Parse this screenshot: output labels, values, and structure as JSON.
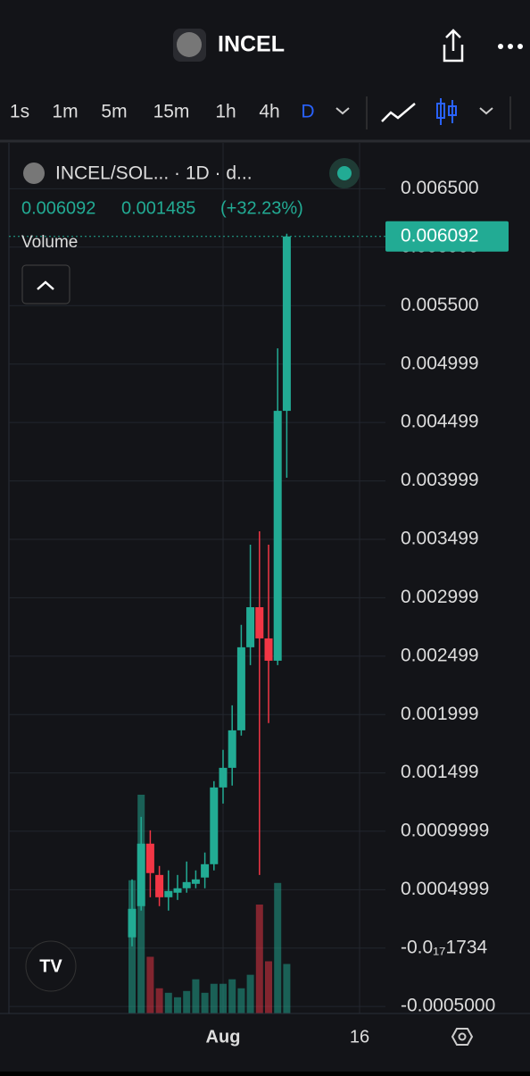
{
  "header": {
    "title": "INCEL"
  },
  "toolbar": {
    "intervals": [
      "1s",
      "1m",
      "5m",
      "15m",
      "1h",
      "4h",
      "D"
    ]
  },
  "legend": {
    "symbol": "INCEL/SOL... · 1D · d...",
    "price": "0.006092",
    "change": "0.001485",
    "change_pct": "(+32.23%)",
    "volume": "Volume"
  },
  "chart_data": {
    "type": "candlestick",
    "up_color": "#22ab94",
    "down_color": "#f23645",
    "grid": true,
    "ylim": [
      -0.00056,
      0.00674
    ],
    "yticks": [
      {
        "value": -0.0005,
        "label": "-0.0005000"
      },
      {
        "value": -1.734e-20,
        "label": "-0.0₁₇1734"
      },
      0.0004999,
      0.0009999,
      0.001499,
      0.001999,
      0.002499,
      0.002999,
      0.003499,
      0.003999,
      0.004499,
      0.004999,
      {
        "value": 0.0055,
        "label": "0.005500"
      },
      {
        "value": 0.006,
        "label": "0.006000"
      },
      {
        "value": 0.0065,
        "label": "0.006500"
      }
    ],
    "last": {
      "value": 0.006092,
      "label": "0.006092"
    },
    "x_labels": [
      {
        "index": 10,
        "label": "Aug"
      },
      {
        "index": 25,
        "label": "16"
      }
    ],
    "open": [
      9.2e-05,
      0.000359,
      0.000894,
      0.000626,
      0.000435,
      0.000474,
      0.000512,
      0.00055,
      0.000604,
      0.000718,
      0.001375,
      0.001543,
      0.001864,
      0.002575,
      0.002918,
      0.002651,
      0.00246,
      0.004599
    ],
    "high": [
      0.000588,
      0.001123,
      0.001008,
      0.000703,
      0.000665,
      0.000626,
      0.000741,
      0.000665,
      0.000818,
      0.001429,
      0.001697,
      0.002078,
      0.002767,
      0.003453,
      0.003568,
      0.003453,
      0.005134,
      0.006115
    ],
    "low": [
      1.5e-05,
      0.000321,
      0.000435,
      0.000359,
      0.000321,
      0.000412,
      0.000474,
      0.000512,
      0.000512,
      0.000665,
      0.001237,
      0.001391,
      0.001819,
      0.002422,
      0.000626,
      0.001926,
      0.002422,
      0.004026
    ],
    "close": [
      0.000336,
      0.000894,
      0.000642,
      0.000435,
      0.000489,
      0.000512,
      0.000565,
      0.000588,
      0.000718,
      0.001375,
      0.001543,
      0.001864,
      0.002575,
      0.002918,
      0.002651,
      0.00246,
      0.004599,
      0.006092
    ],
    "volume": [
      148,
      243,
      63,
      28,
      23,
      18,
      25,
      38,
      23,
      33,
      33,
      38,
      28,
      43,
      121,
      58,
      145,
      55
    ]
  }
}
